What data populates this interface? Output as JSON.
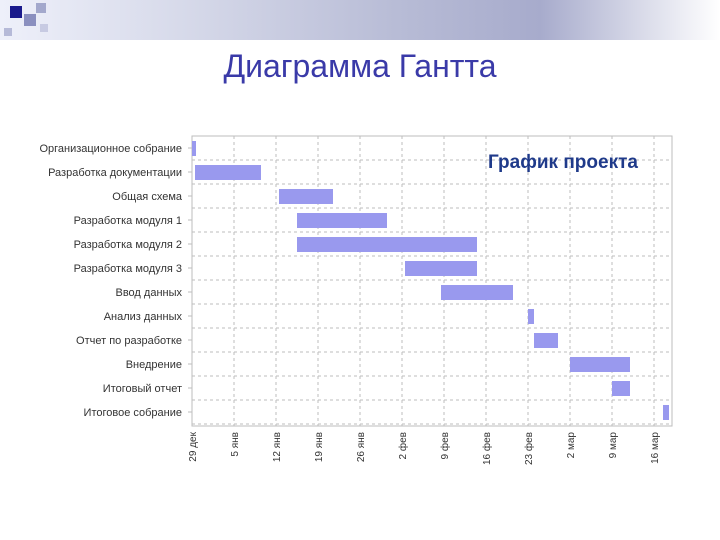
{
  "slide": {
    "title": "Диаграмма Гантта"
  },
  "colors": {
    "bar": "#9999ee",
    "title": "#3a3aa8",
    "chart_title": "#1f3a8a",
    "grid": "#bdbdbd",
    "text": "#333333"
  },
  "chart_data": {
    "type": "gantt",
    "title": "График проекта",
    "x_ticks": [
      "29 дек",
      "5 янв",
      "12 янв",
      "19 янв",
      "26 янв",
      "2 фев",
      "9 фев",
      "16 фев",
      "23 фев",
      "2 мар",
      "9 мар",
      "16 мар"
    ],
    "tasks": [
      {
        "name": "Организационное собрание",
        "start_day": 0,
        "duration_days": 0.5
      },
      {
        "name": "Разработка документации",
        "start_day": 0.5,
        "duration_days": 11
      },
      {
        "name": "Общая схема",
        "start_day": 14.5,
        "duration_days": 9
      },
      {
        "name": "Разработка модуля 1",
        "start_day": 17.5,
        "duration_days": 15
      },
      {
        "name": "Разработка модуля 2",
        "start_day": 17.5,
        "duration_days": 30
      },
      {
        "name": "Разработка модуля 3",
        "start_day": 35.5,
        "duration_days": 12
      },
      {
        "name": "Ввод данных",
        "start_day": 41.5,
        "duration_days": 12
      },
      {
        "name": "Анализ данных",
        "start_day": 56,
        "duration_days": 1
      },
      {
        "name": "Отчет по разработке",
        "start_day": 57,
        "duration_days": 4
      },
      {
        "name": "Внедрение",
        "start_day": 63,
        "duration_days": 10
      },
      {
        "name": "Итоговый отчет",
        "start_day": 70,
        "duration_days": 3
      },
      {
        "name": "Итоговое собрание",
        "start_day": 78.5,
        "duration_days": 1
      }
    ],
    "grid": true,
    "legend": "none"
  }
}
